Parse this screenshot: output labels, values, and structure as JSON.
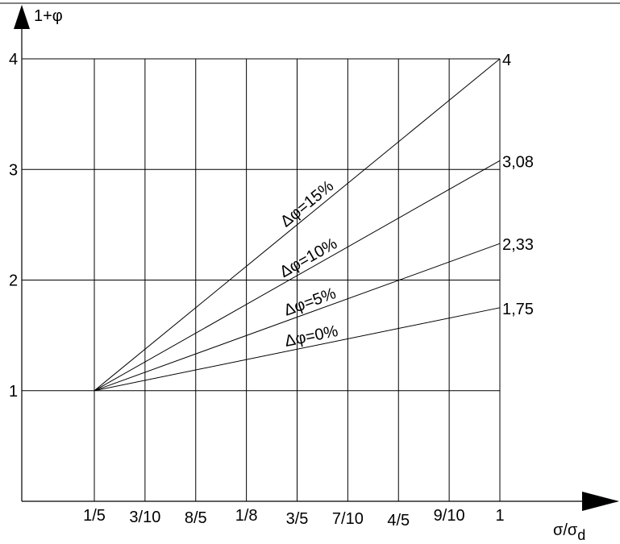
{
  "chart_data": {
    "type": "line",
    "ylabel": "1+φ",
    "xlabel_main": "σ/σ",
    "xlabel_sub": "d",
    "x_categories": [
      "1/5",
      "3/10",
      "8/5",
      "1/8",
      "3/5",
      "7/10",
      "4/5",
      "9/10",
      "1"
    ],
    "y_ticks": [
      "1",
      "2",
      "3",
      "4"
    ],
    "ylim": [
      0,
      4
    ],
    "grid": true,
    "series": [
      {
        "name": "Δφ=15%",
        "start": 1,
        "end": 4,
        "end_label": "4"
      },
      {
        "name": "Δφ=10%",
        "start": 1,
        "end": 3.08,
        "end_label": "3,08"
      },
      {
        "name": "Δφ=5%",
        "start": 1,
        "end": 2.33,
        "end_label": "2,33"
      },
      {
        "name": "Δφ=0%",
        "start": 1,
        "end": 1.75,
        "end_label": "1,75"
      }
    ]
  }
}
